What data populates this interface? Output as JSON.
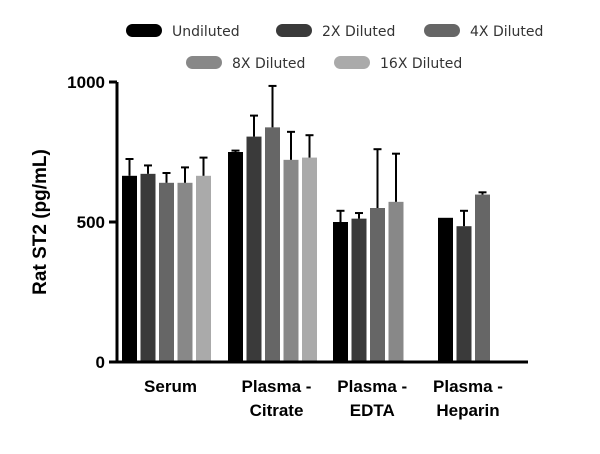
{
  "chart_data": {
    "type": "bar",
    "title": "",
    "xlabel": "",
    "ylabel": "Rat ST2 (pg/mL)",
    "ylim": [
      0,
      1000
    ],
    "yticks": [
      0,
      500,
      1000
    ],
    "categories": [
      [
        "Serum"
      ],
      [
        "Plasma -",
        "Citrate"
      ],
      [
        "Plasma -",
        "EDTA"
      ],
      [
        "Plasma -",
        "Heparin"
      ]
    ],
    "series": [
      {
        "name": "Undiluted",
        "color": "#000000",
        "values": [
          665,
          750,
          500,
          515
        ],
        "errors": [
          60,
          5,
          40,
          0
        ]
      },
      {
        "name": "2X Diluted",
        "color": "#3a3a3a",
        "values": [
          672,
          805,
          512,
          485
        ],
        "errors": [
          30,
          75,
          20,
          55
        ]
      },
      {
        "name": "4X Diluted",
        "color": "#666666",
        "values": [
          640,
          838,
          550,
          598
        ],
        "errors": [
          35,
          148,
          210,
          8
        ]
      },
      {
        "name": "8X Diluted",
        "color": "#888888",
        "values": [
          640,
          722,
          572,
          null
        ],
        "errors": [
          55,
          100,
          172,
          null
        ]
      },
      {
        "name": "16X Diluted",
        "color": "#aaaaaa",
        "values": [
          665,
          730,
          null,
          null
        ],
        "errors": [
          65,
          80,
          null,
          null
        ]
      }
    ],
    "legend_position": "top"
  }
}
